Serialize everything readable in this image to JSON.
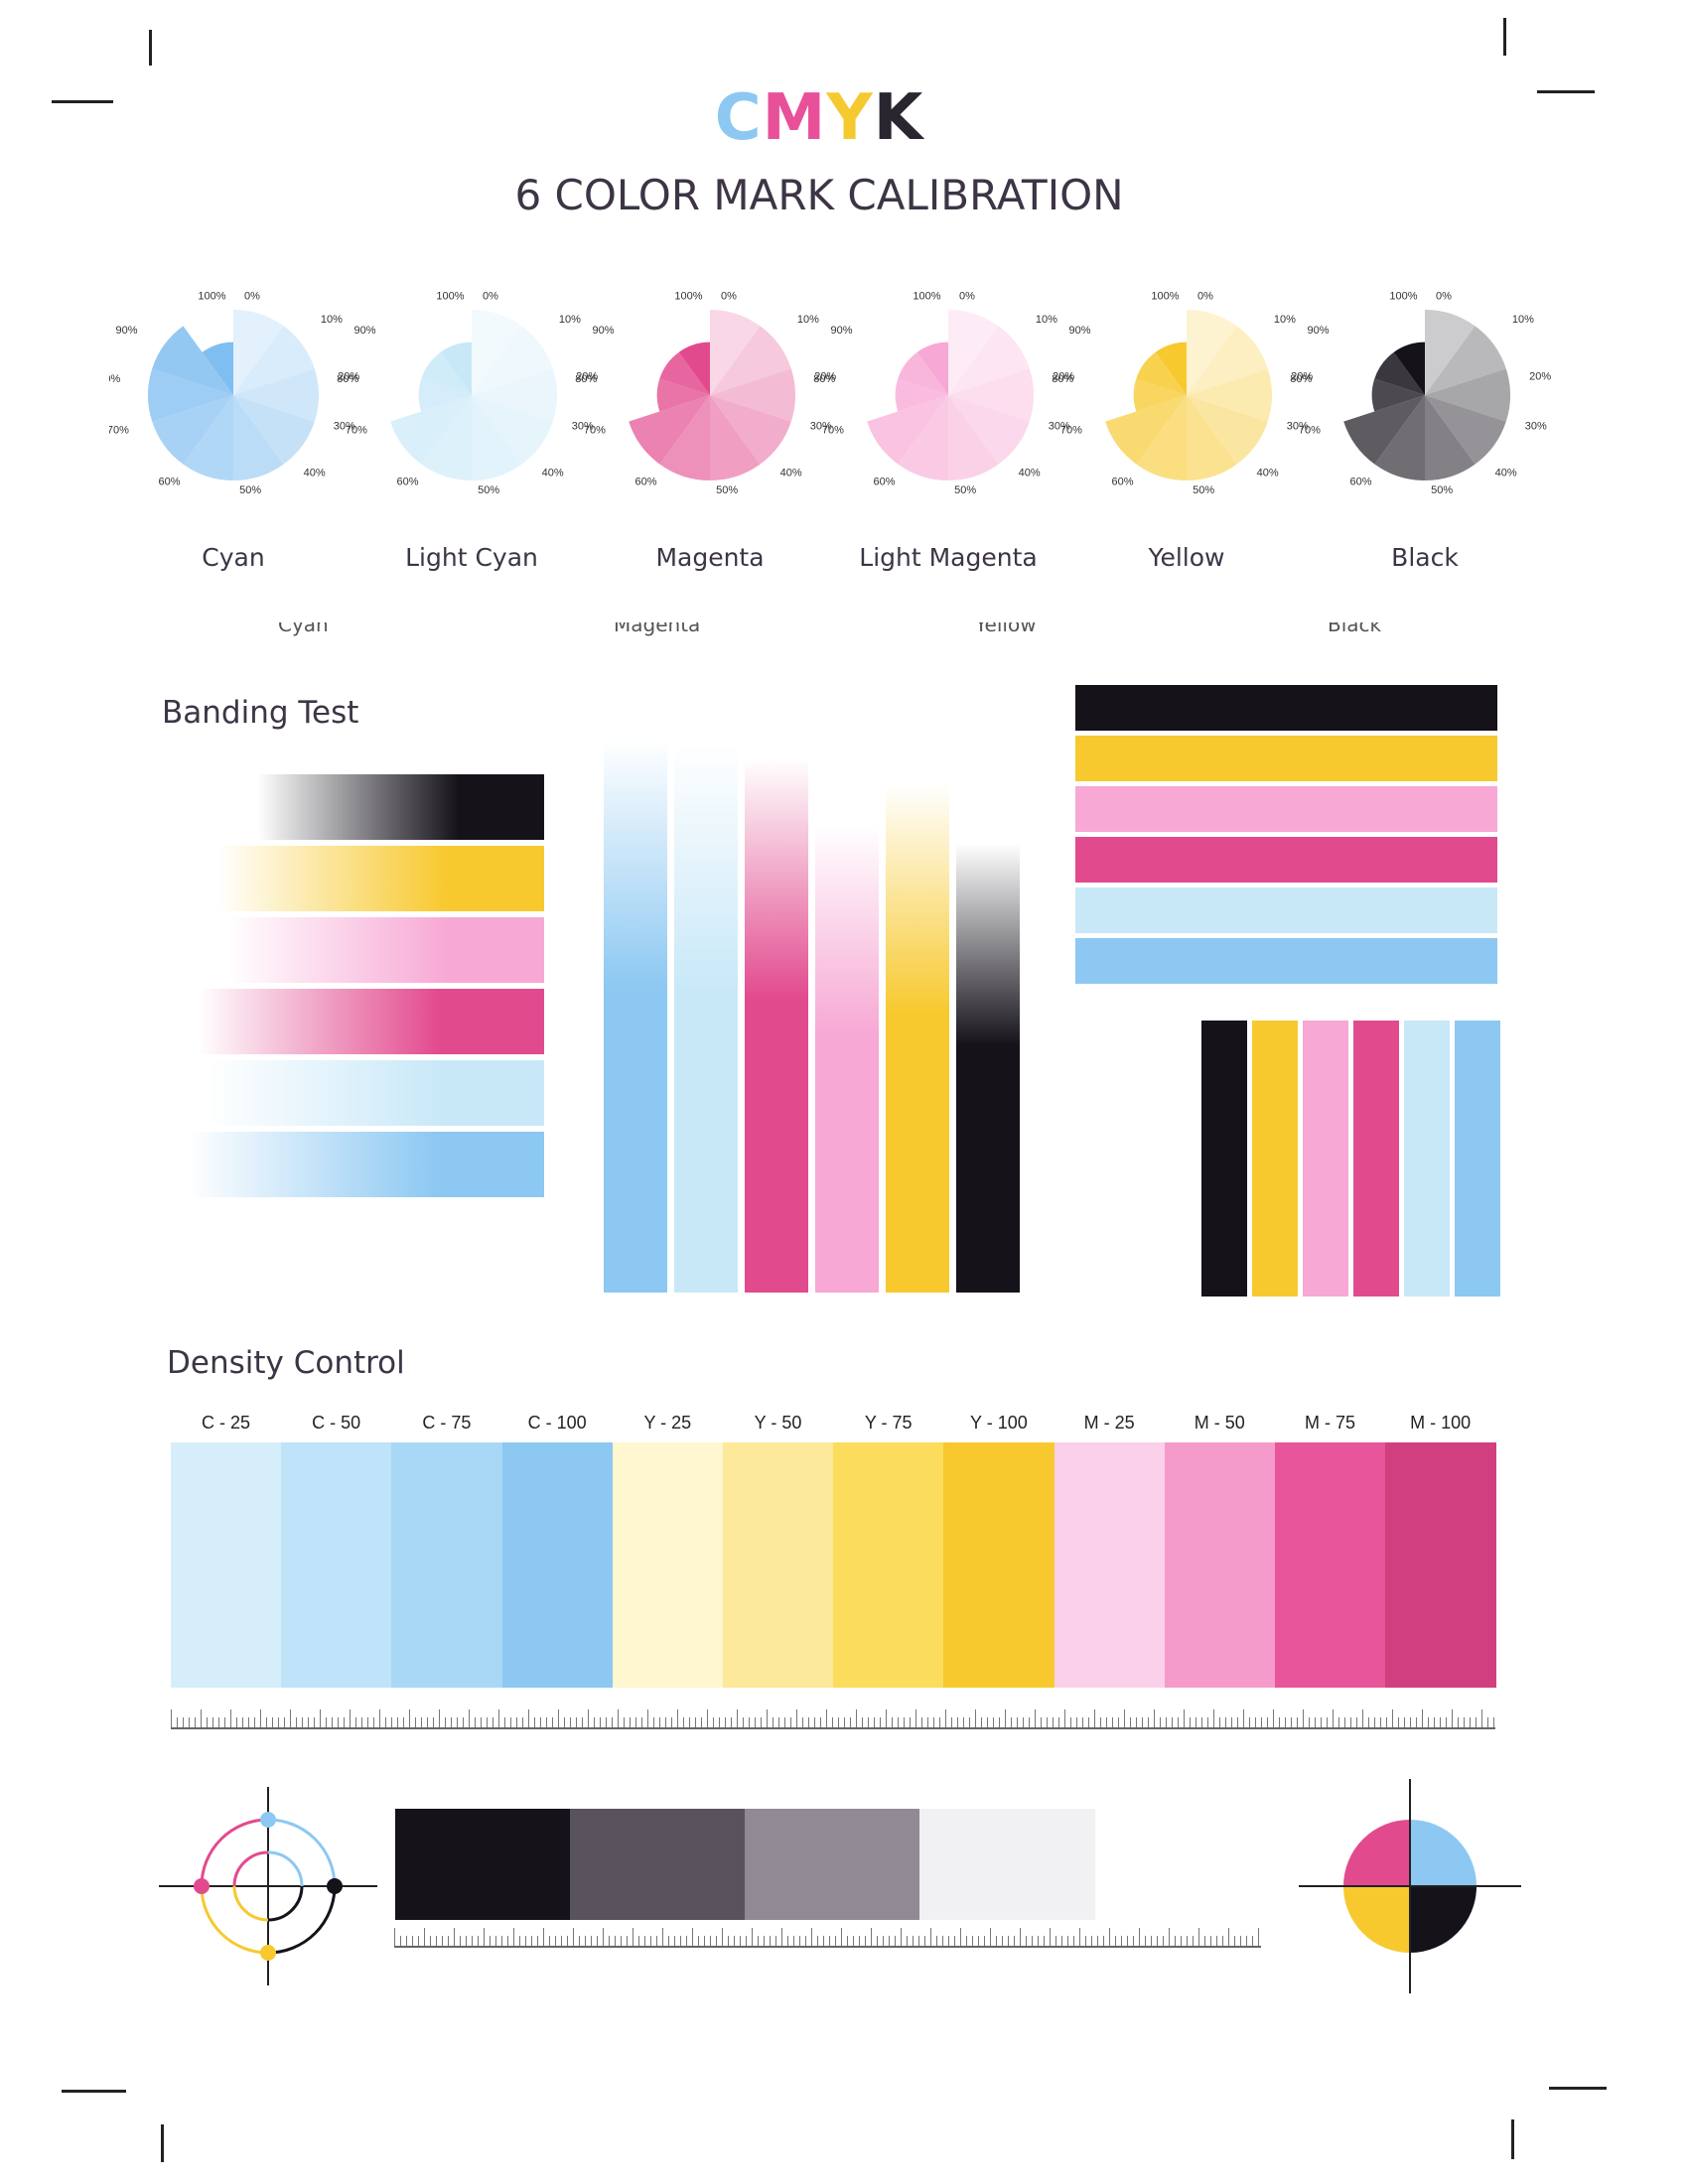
{
  "header": {
    "brand_letters": [
      {
        "letter": "C",
        "color": "#8cc8f2"
      },
      {
        "letter": "M",
        "color": "#e8509a"
      },
      {
        "letter": "Y",
        "color": "#f5c930"
      },
      {
        "letter": "K",
        "color": "#2b2530"
      }
    ],
    "subtitle": "6 COLOR MARK CALIBRATION"
  },
  "pie_ticks": [
    "100%",
    "0%",
    "10%",
    "20%",
    "30%",
    "40%",
    "50%",
    "60%",
    "70%",
    "80%",
    "90%"
  ],
  "pies": [
    {
      "label": "Cyan",
      "color": "#7fbef0",
      "filled_to": 0.9
    },
    {
      "label": "Light Cyan",
      "color": "#c8e8f8",
      "filled_to": 0.75
    },
    {
      "label": "Magenta",
      "color": "#e24a8e",
      "filled_to": 0.7
    },
    {
      "label": "Light Magenta",
      "color": "#f7a8d4",
      "filled_to": 0.7
    },
    {
      "label": "Yellow",
      "color": "#f7c92f",
      "filled_to": 0.75
    },
    {
      "label": "Black",
      "color": "#15121a",
      "filled_to": 0.7
    }
  ],
  "cutoff_labels": [
    "Cyan",
    "Magenta",
    "Yellow",
    "Black"
  ],
  "banding": {
    "title": "Banding Test",
    "colors": [
      "#15121a",
      "#f7c92f",
      "#f7a8d4",
      "#e24a8e",
      "#c8e8f8",
      "#8cc8f2"
    ]
  },
  "density": {
    "title": "Density Control",
    "swatches": [
      {
        "label": "C - 25",
        "color": "#d6eefa"
      },
      {
        "label": "C - 50",
        "color": "#bfe3f8"
      },
      {
        "label": "C - 75",
        "color": "#a9d7f6"
      },
      {
        "label": "C - 100",
        "color": "#8cc8f2"
      },
      {
        "label": "Y - 25",
        "color": "#fef7d0"
      },
      {
        "label": "Y - 50",
        "color": "#fde99a"
      },
      {
        "label": "Y - 75",
        "color": "#fcdc5c"
      },
      {
        "label": "Y - 100",
        "color": "#f7c92f"
      },
      {
        "label": "M - 25",
        "color": "#fbd0ea"
      },
      {
        "label": "M - 50",
        "color": "#f49bcb"
      },
      {
        "label": "M - 75",
        "color": "#e9559b"
      },
      {
        "label": "M - 100",
        "color": "#d13f7f"
      }
    ]
  },
  "gray_ramp": [
    "#15121a",
    "#58535c",
    "#8f8a93",
    "#f1f0f3"
  ],
  "registration_colors": {
    "cyan": "#8cc8f2",
    "magenta": "#e24a8e",
    "yellow": "#f7c92f",
    "black": "#15121a"
  }
}
